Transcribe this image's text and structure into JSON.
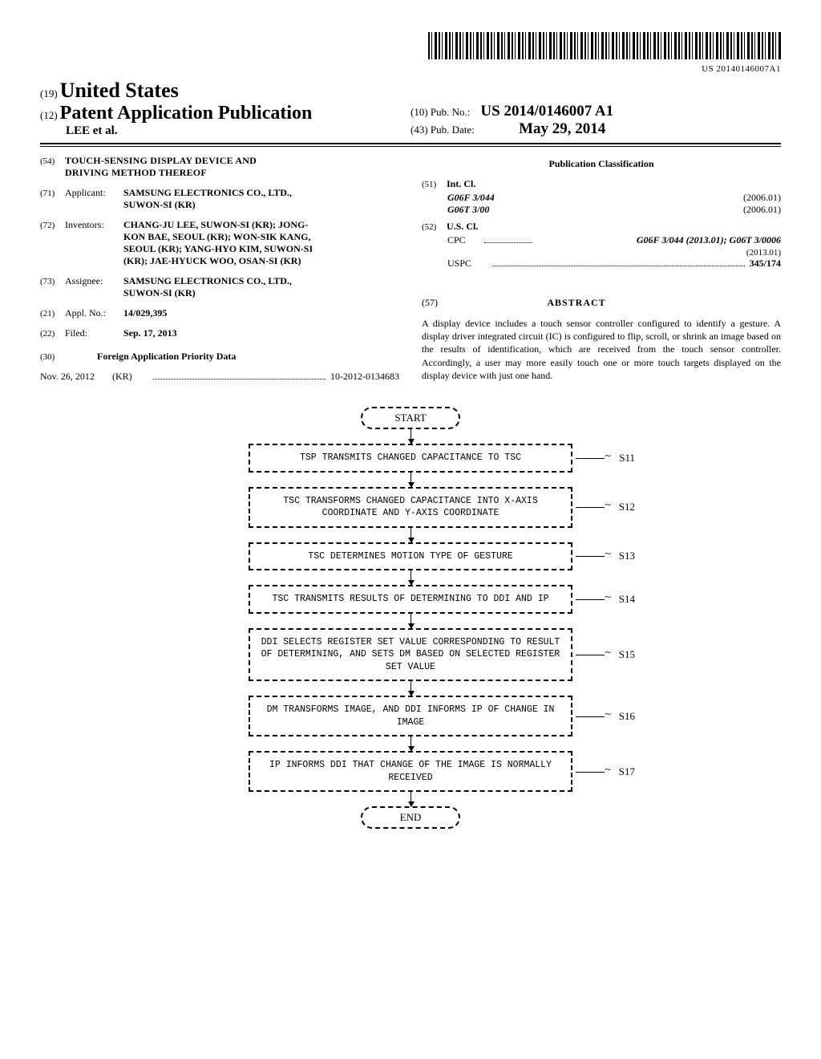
{
  "barcode_number": "US 20140146007A1",
  "header": {
    "label19": "(19)",
    "country": "United States",
    "label12": "(12)",
    "doctype": "Patent Application Publication",
    "authors": "LEE et al.",
    "label10": "(10)",
    "pubno_label": "Pub. No.:",
    "pubno": "US 2014/0146007 A1",
    "label43": "(43)",
    "pubdate_label": "Pub. Date:",
    "pubdate": "May 29, 2014"
  },
  "left": {
    "n54": "(54)",
    "title": "TOUCH-SENSING DISPLAY DEVICE AND DRIVING METHOD THEREOF",
    "n71": "(71)",
    "applicant_lbl": "Applicant:",
    "applicant": "SAMSUNG ELECTRONICS CO., LTD., SUWON-SI (KR)",
    "n72": "(72)",
    "inventors_lbl": "Inventors:",
    "inventors": "CHANG-JU LEE, SUWON-SI (KR); JONG-KON BAE, SEOUL (KR); WON-SIK KANG, SEOUL (KR); YANG-HYO KIM, SUWON-SI (KR); JAE-HYUCK WOO, OSAN-SI (KR)",
    "n73": "(73)",
    "assignee_lbl": "Assignee:",
    "assignee": "SAMSUNG ELECTRONICS CO., LTD., SUWON-SI (KR)",
    "n21": "(21)",
    "applno_lbl": "Appl. No.:",
    "applno": "14/029,395",
    "n22": "(22)",
    "filed_lbl": "Filed:",
    "filed": "Sep. 17, 2013",
    "n30": "(30)",
    "foreign_hdr": "Foreign Application Priority Data",
    "prio_date": "Nov. 26, 2012",
    "prio_cc": "(KR)",
    "prio_num": "10-2012-0134683"
  },
  "right": {
    "pubclass_hdr": "Publication Classification",
    "n51": "(51)",
    "intcl_lbl": "Int. Cl.",
    "intcl": [
      {
        "code": "G06F 3/044",
        "year": "(2006.01)"
      },
      {
        "code": "G06T 3/00",
        "year": "(2006.01)"
      }
    ],
    "n52": "(52)",
    "uscl_lbl": "U.S. Cl.",
    "cpc_lbl": "CPC",
    "cpc_val": "G06F 3/044 (2013.01); G06T 3/0006",
    "cpc_year": "(2013.01)",
    "uspc_lbl": "USPC",
    "uspc_val": "345/174",
    "n57": "(57)",
    "abstract_hdr": "ABSTRACT",
    "abstract_body": "A display device includes a touch sensor controller configured to identify a gesture. A display driver integrated circuit (IC) is configured to flip, scroll, or shrink an image based on the results of identification, which are received from the touch sensor controller. Accordingly, a user may more easily touch one or more touch targets displayed on the display device with just one hand."
  },
  "flowchart": {
    "start": "START",
    "end": "END",
    "steps": [
      {
        "id": "S11",
        "text": "TSP TRANSMITS CHANGED CAPACITANCE TO TSC"
      },
      {
        "id": "S12",
        "text": "TSC TRANSFORMS CHANGED CAPACITANCE INTO X-AXIS COORDINATE AND Y-AXIS COORDINATE"
      },
      {
        "id": "S13",
        "text": "TSC DETERMINES MOTION TYPE OF GESTURE"
      },
      {
        "id": "S14",
        "text": "TSC TRANSMITS RESULTS OF DETERMINING TO DDI AND IP"
      },
      {
        "id": "S15",
        "text": "DDI SELECTS REGISTER SET VALUE CORRESPONDING TO RESULT OF DETERMINING, AND SETS DM BASED ON SELECTED REGISTER SET VALUE"
      },
      {
        "id": "S16",
        "text": "DM TRANSFORMS IMAGE, AND DDI INFORMS IP OF CHANGE IN IMAGE"
      },
      {
        "id": "S17",
        "text": "IP INFORMS DDI THAT CHANGE OF THE IMAGE IS NORMALLY RECEIVED"
      }
    ]
  }
}
